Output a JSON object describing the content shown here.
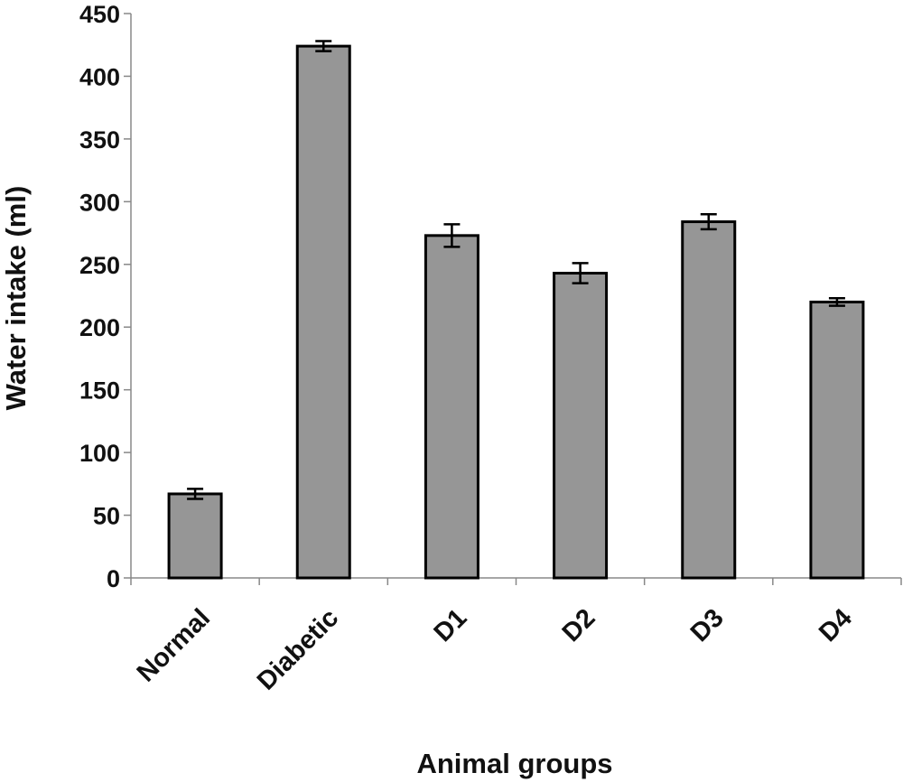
{
  "chart_data": {
    "type": "bar",
    "title": "",
    "xlabel": "Animal groups",
    "ylabel": "Water intake (ml)",
    "categories": [
      "Normal",
      "Diabetic",
      "D1",
      "D2",
      "D3",
      "D4"
    ],
    "values": [
      67,
      424,
      273,
      243,
      284,
      220
    ],
    "errors": [
      4,
      4,
      9,
      8,
      6,
      3
    ],
    "ylim": [
      0,
      450
    ],
    "yticks": [
      "0",
      "50",
      "100",
      "150",
      "200",
      "250",
      "300",
      "350",
      "400",
      "450"
    ],
    "grid": false,
    "legend": "none",
    "bar_color": "#969696",
    "bar_edge_color": "#000000"
  }
}
